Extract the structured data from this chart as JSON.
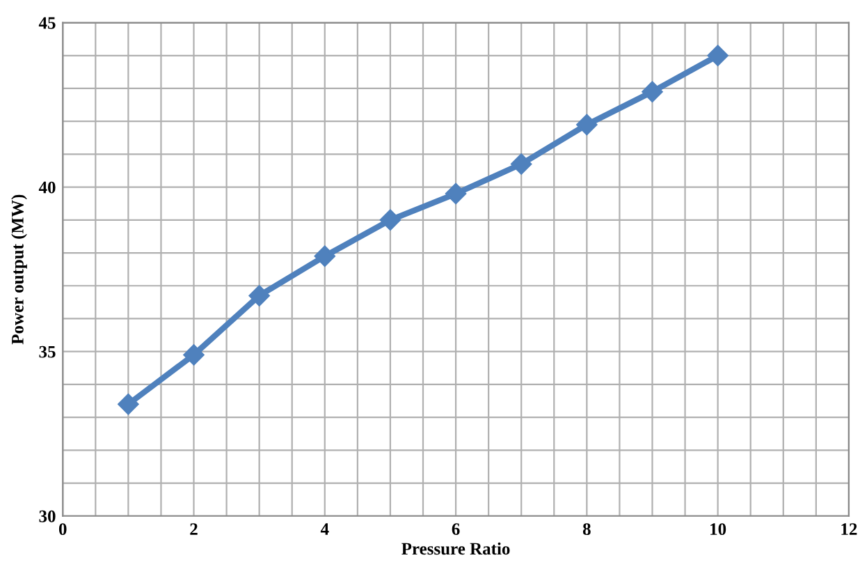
{
  "chart_data": {
    "type": "line",
    "xlabel": "Pressure Ratio",
    "ylabel": "Power output (MW)",
    "x": [
      1,
      2,
      3,
      4,
      5,
      6,
      7,
      8,
      9,
      10
    ],
    "series": [
      {
        "color": "#4f81bd",
        "values": [
          33.4,
          34.9,
          36.7,
          37.9,
          39.0,
          39.8,
          40.7,
          41.9,
          42.9,
          44.0
        ]
      }
    ],
    "xlim": [
      0,
      12
    ],
    "ylim": [
      30,
      45
    ],
    "xticks": [
      0,
      {
        "value": 0.5,
        "label": null
      },
      {
        "value": 1,
        "label": null
      },
      {
        "value": 1.5,
        "label": null
      },
      2,
      {
        "value": 2.5,
        "label": null
      },
      {
        "value": 3,
        "label": null
      },
      {
        "value": 3.5,
        "label": null
      },
      4,
      {
        "value": 4.5,
        "label": null
      },
      {
        "value": 5,
        "label": null
      },
      {
        "value": 5.5,
        "label": null
      },
      6,
      {
        "value": 6.5,
        "label": null
      },
      {
        "value": 7,
        "label": null
      },
      {
        "value": 7.5,
        "label": null
      },
      8,
      {
        "value": 8.5,
        "label": null
      },
      {
        "value": 9,
        "label": null
      },
      {
        "value": 9.5,
        "label": null
      },
      10,
      {
        "value": 10.5,
        "label": null
      },
      {
        "value": 11,
        "label": null
      },
      {
        "value": 11.5,
        "label": null
      },
      12
    ],
    "yticks": [
      30,
      {
        "value": 31,
        "label": null
      },
      {
        "value": 32,
        "label": null
      },
      {
        "value": 33,
        "label": null
      },
      {
        "value": 34,
        "label": null
      },
      35,
      {
        "value": 36,
        "label": null
      },
      {
        "value": 37,
        "label": null
      },
      {
        "value": 38,
        "label": null
      },
      {
        "value": 39,
        "label": null
      },
      40,
      {
        "value": 41,
        "label": null
      },
      {
        "value": 42,
        "label": null
      },
      {
        "value": 43,
        "label": null
      },
      {
        "value": 44,
        "label": null
      },
      45
    ],
    "grid": true,
    "marker": "diamond",
    "line_style": "solid"
  }
}
